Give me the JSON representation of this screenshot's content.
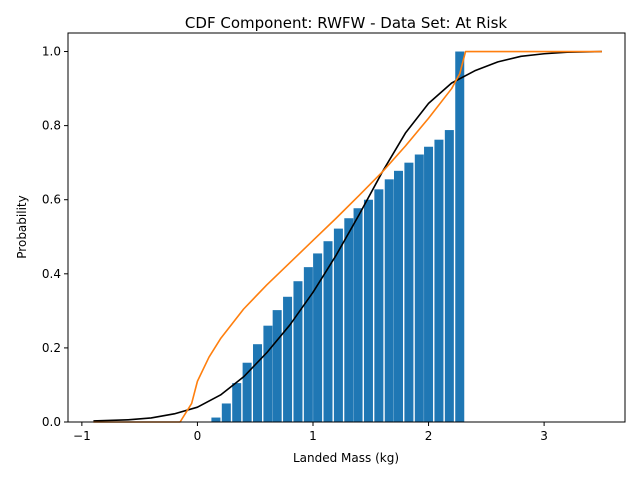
{
  "chart_data": {
    "type": "bar",
    "title": "CDF Component: RWFW - Data Set: At Risk",
    "xlabel": "Landed Mass (kg)",
    "ylabel": "Probability",
    "xlim": [
      -1.12,
      3.7
    ],
    "ylim": [
      0,
      1.05
    ],
    "xticks": [
      -1,
      0,
      1,
      2,
      3
    ],
    "xtick_labels": [
      "−1",
      "0",
      "1",
      "2",
      "3"
    ],
    "yticks": [
      0.0,
      0.2,
      0.4,
      0.6,
      0.8,
      1.0
    ],
    "ytick_labels": [
      "0.0",
      "0.2",
      "0.4",
      "0.6",
      "0.8",
      "1.0"
    ],
    "grid": false,
    "legend": "none",
    "colors": {
      "bars": "#1f77b4",
      "line1": "#000000",
      "line2": "#ff7f0e"
    },
    "bar_width": 0.078,
    "bars": {
      "x": [
        0.16,
        0.25,
        0.34,
        0.43,
        0.52,
        0.61,
        0.69,
        0.78,
        0.87,
        0.96,
        1.04,
        1.13,
        1.22,
        1.31,
        1.39,
        1.48,
        1.57,
        1.66,
        1.74,
        1.83,
        1.92,
        2.0,
        2.09,
        2.18,
        2.27
      ],
      "values": [
        0.012,
        0.05,
        0.105,
        0.16,
        0.21,
        0.26,
        0.302,
        0.338,
        0.38,
        0.418,
        0.455,
        0.488,
        0.522,
        0.55,
        0.577,
        0.6,
        0.628,
        0.655,
        0.678,
        0.7,
        0.722,
        0.743,
        0.762,
        0.788,
        1.0
      ]
    },
    "series": [
      {
        "x": [
          -0.9,
          -0.6,
          -0.4,
          -0.2,
          0.0,
          0.2,
          0.4,
          0.6,
          0.8,
          1.0,
          1.2,
          1.4,
          1.6,
          1.8,
          2.0,
          2.2,
          2.4,
          2.6,
          2.8,
          3.0,
          3.2,
          3.5
        ],
        "values": [
          0.003,
          0.006,
          0.011,
          0.022,
          0.04,
          0.073,
          0.122,
          0.187,
          0.262,
          0.35,
          0.45,
          0.56,
          0.675,
          0.78,
          0.86,
          0.915,
          0.948,
          0.972,
          0.987,
          0.994,
          0.998,
          1.0
        ]
      },
      {
        "x": [
          -0.9,
          -0.15,
          -0.05,
          0.0,
          0.1,
          0.2,
          0.4,
          0.6,
          0.8,
          1.0,
          1.2,
          1.4,
          1.6,
          1.8,
          2.0,
          2.2,
          2.27,
          2.32,
          3.5
        ],
        "values": [
          0.0,
          0.0,
          0.05,
          0.11,
          0.175,
          0.225,
          0.305,
          0.37,
          0.43,
          0.49,
          0.55,
          0.612,
          0.675,
          0.745,
          0.82,
          0.9,
          0.94,
          1.0,
          1.0
        ]
      }
    ]
  }
}
